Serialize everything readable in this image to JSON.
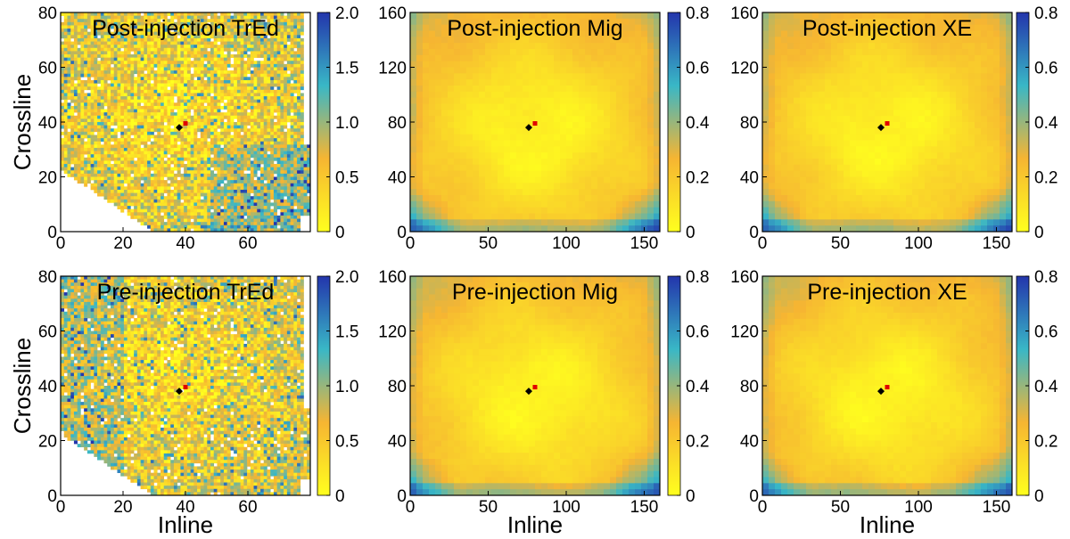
{
  "colormap": [
    "#ffff1e",
    "#f6b532",
    "#39b7c6",
    "#2335ac"
  ],
  "chart_data": [
    {
      "type": "heatmap",
      "title": "Post-injection TrEd",
      "xlabel": "",
      "ylabel": "Crossline",
      "xlim": [
        0,
        80
      ],
      "ylim": [
        0,
        80
      ],
      "xticks": [
        0,
        20,
        40,
        60
      ],
      "xtick_labels": [
        "0",
        "20",
        "40",
        "60"
      ],
      "yticks": [
        0,
        20,
        40,
        60,
        80
      ],
      "ytick_labels": [
        "0",
        "20",
        "40",
        "60",
        "80"
      ],
      "colorbar": {
        "range": [
          0,
          2.0
        ],
        "ticks": [
          0,
          0.5,
          1.0,
          1.5,
          2.0
        ],
        "labels": [
          "0",
          "0.5",
          "1.0",
          "1.5",
          "2.0"
        ]
      },
      "pattern": "scatter",
      "markers": [
        {
          "x": 38,
          "y": 38,
          "color": "#000000"
        },
        {
          "x": 40,
          "y": 39.5,
          "color": "#e00000"
        }
      ]
    },
    {
      "type": "heatmap",
      "title": "Post-injection Mig",
      "xlabel": "",
      "ylabel": "",
      "xlim": [
        0,
        160
      ],
      "ylim": [
        0,
        160
      ],
      "xticks": [
        0,
        50,
        100,
        150
      ],
      "xtick_labels": [
        "0",
        "50",
        "100",
        "150"
      ],
      "yticks": [
        0,
        40,
        80,
        120,
        160
      ],
      "ytick_labels": [
        "0",
        "40",
        "80",
        "120",
        "160"
      ],
      "colorbar": {
        "range": [
          0,
          0.8
        ],
        "ticks": [
          0,
          0.2,
          0.4,
          0.6,
          0.8
        ],
        "labels": [
          "0",
          "0.2",
          "0.4",
          "0.6",
          "0.8"
        ]
      },
      "pattern": "smooth",
      "markers": [
        {
          "x": 76,
          "y": 76,
          "color": "#000000"
        },
        {
          "x": 80,
          "y": 79,
          "color": "#e00000"
        }
      ]
    },
    {
      "type": "heatmap",
      "title": "Post-injection XE",
      "xlabel": "",
      "ylabel": "",
      "xlim": [
        0,
        160
      ],
      "ylim": [
        0,
        160
      ],
      "xticks": [
        0,
        50,
        100,
        150
      ],
      "xtick_labels": [
        "0",
        "50",
        "100",
        "150"
      ],
      "yticks": [
        0,
        40,
        80,
        120,
        160
      ],
      "ytick_labels": [
        "0",
        "40",
        "80",
        "120",
        "160"
      ],
      "colorbar": {
        "range": [
          0,
          0.8
        ],
        "ticks": [
          0,
          0.2,
          0.4,
          0.6,
          0.8
        ],
        "labels": [
          "0",
          "0.2",
          "0.4",
          "0.6",
          "0.8"
        ]
      },
      "pattern": "smooth",
      "markers": [
        {
          "x": 76,
          "y": 76,
          "color": "#000000"
        },
        {
          "x": 80,
          "y": 79,
          "color": "#e00000"
        }
      ]
    },
    {
      "type": "heatmap",
      "title": "Pre-injection TrEd",
      "xlabel": "Inline",
      "ylabel": "Crossline",
      "xlim": [
        0,
        80
      ],
      "ylim": [
        0,
        80
      ],
      "xticks": [
        0,
        20,
        40,
        60
      ],
      "xtick_labels": [
        "0",
        "20",
        "40",
        "60"
      ],
      "yticks": [
        0,
        20,
        40,
        60,
        80
      ],
      "ytick_labels": [
        "0",
        "20",
        "40",
        "60",
        "80"
      ],
      "colorbar": {
        "range": [
          0,
          2.0
        ],
        "ticks": [
          0,
          0.5,
          1.0,
          1.5,
          2.0
        ],
        "labels": [
          "0",
          "0.5",
          "1.0",
          "1.5",
          "2.0"
        ]
      },
      "pattern": "scatter",
      "markers": [
        {
          "x": 38,
          "y": 38,
          "color": "#000000"
        },
        {
          "x": 40,
          "y": 39.5,
          "color": "#e00000"
        }
      ]
    },
    {
      "type": "heatmap",
      "title": "Pre-injection Mig",
      "xlabel": "Inline",
      "ylabel": "",
      "xlim": [
        0,
        160
      ],
      "ylim": [
        0,
        160
      ],
      "xticks": [
        0,
        50,
        100,
        150
      ],
      "xtick_labels": [
        "0",
        "50",
        "100",
        "150"
      ],
      "yticks": [
        0,
        40,
        80,
        120,
        160
      ],
      "ytick_labels": [
        "0",
        "40",
        "80",
        "120",
        "160"
      ],
      "colorbar": {
        "range": [
          0,
          0.8
        ],
        "ticks": [
          0,
          0.2,
          0.4,
          0.6,
          0.8
        ],
        "labels": [
          "0",
          "0.2",
          "0.4",
          "0.6",
          "0.8"
        ]
      },
      "pattern": "smooth",
      "markers": [
        {
          "x": 76,
          "y": 76,
          "color": "#000000"
        },
        {
          "x": 80,
          "y": 79,
          "color": "#e00000"
        }
      ]
    },
    {
      "type": "heatmap",
      "title": "Pre-injection XE",
      "xlabel": "Inline",
      "ylabel": "",
      "xlim": [
        0,
        160
      ],
      "ylim": [
        0,
        160
      ],
      "xticks": [
        0,
        50,
        100,
        150
      ],
      "xtick_labels": [
        "0",
        "50",
        "100",
        "150"
      ],
      "yticks": [
        0,
        40,
        80,
        120,
        160
      ],
      "ytick_labels": [
        "0",
        "40",
        "80",
        "120",
        "160"
      ],
      "colorbar": {
        "range": [
          0,
          0.8
        ],
        "ticks": [
          0,
          0.2,
          0.4,
          0.6,
          0.8
        ],
        "labels": [
          "0",
          "0.2",
          "0.4",
          "0.6",
          "0.8"
        ]
      },
      "pattern": "smooth",
      "markers": [
        {
          "x": 76,
          "y": 76,
          "color": "#000000"
        },
        {
          "x": 80,
          "y": 79,
          "color": "#e00000"
        }
      ]
    }
  ]
}
